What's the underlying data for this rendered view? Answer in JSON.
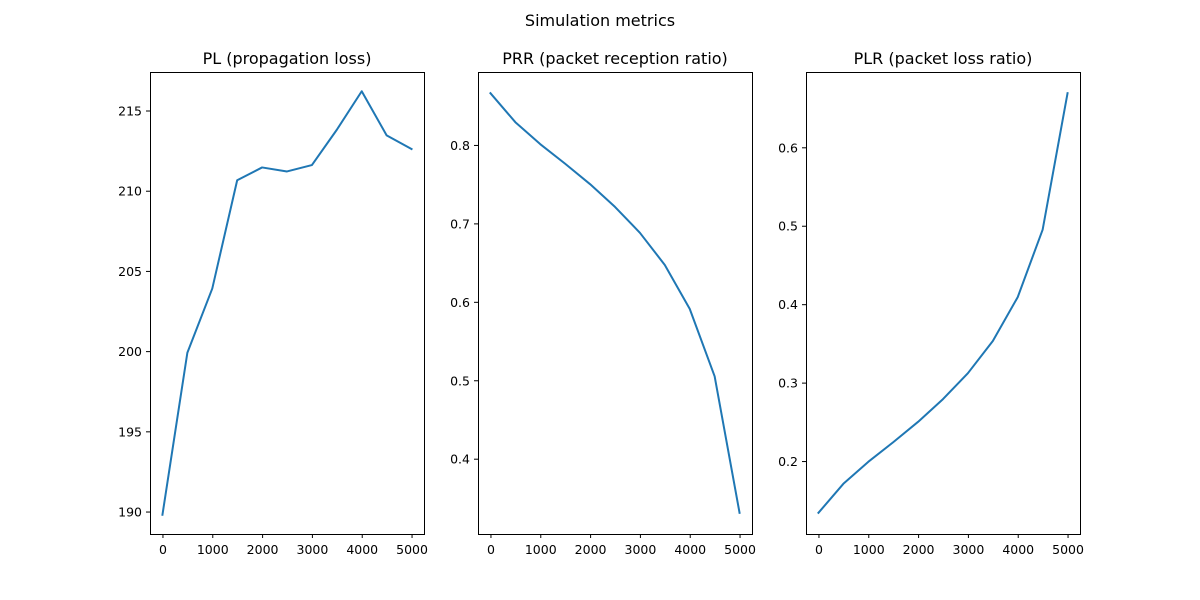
{
  "figure": {
    "title": "Simulation metrics"
  },
  "chart_data": [
    {
      "type": "line",
      "title": "PL (propagation loss)",
      "xlabel": "",
      "ylabel": "",
      "x": [
        0,
        500,
        1000,
        1500,
        2000,
        2500,
        3000,
        3500,
        4000,
        4500,
        5000
      ],
      "series": [
        {
          "values": [
            189.8,
            199.9,
            203.9,
            210.65,
            211.45,
            211.2,
            211.6,
            213.8,
            216.2,
            213.45,
            212.6
          ],
          "color": "#1f77b4"
        }
      ],
      "xlim": [
        -250,
        5250
      ],
      "ylim": [
        188.6,
        217.4
      ],
      "xticks": [
        0,
        1000,
        2000,
        3000,
        4000,
        5000
      ],
      "yticks": [
        190,
        195,
        200,
        205,
        210,
        215
      ],
      "grid": false
    },
    {
      "type": "line",
      "title": "PRR (packet reception ratio)",
      "xlabel": "",
      "ylabel": "",
      "x": [
        0,
        500,
        1000,
        1500,
        2000,
        2500,
        3000,
        3500,
        4000,
        4500,
        5000
      ],
      "series": [
        {
          "values": [
            0.866,
            0.829,
            0.801,
            0.776,
            0.75,
            0.721,
            0.688,
            0.647,
            0.591,
            0.505,
            0.331
          ],
          "color": "#1f77b4"
        }
      ],
      "xlim": [
        -250,
        5250
      ],
      "ylim": [
        0.304,
        0.893
      ],
      "xticks": [
        0,
        1000,
        2000,
        3000,
        4000,
        5000
      ],
      "yticks": [
        0.4,
        0.5,
        0.6,
        0.7,
        0.8
      ],
      "grid": false
    },
    {
      "type": "line",
      "title": "PLR (packet loss ratio)",
      "xlabel": "",
      "ylabel": "",
      "x": [
        0,
        500,
        1000,
        1500,
        2000,
        2500,
        3000,
        3500,
        4000,
        4500,
        5000
      ],
      "series": [
        {
          "values": [
            0.134,
            0.171,
            0.199,
            0.224,
            0.25,
            0.279,
            0.312,
            0.353,
            0.409,
            0.495,
            0.669
          ],
          "color": "#1f77b4"
        }
      ],
      "xlim": [
        -250,
        5250
      ],
      "ylim": [
        0.107,
        0.696
      ],
      "xticks": [
        0,
        1000,
        2000,
        3000,
        4000,
        5000
      ],
      "yticks": [
        0.2,
        0.3,
        0.4,
        0.5,
        0.6
      ],
      "grid": false
    }
  ]
}
